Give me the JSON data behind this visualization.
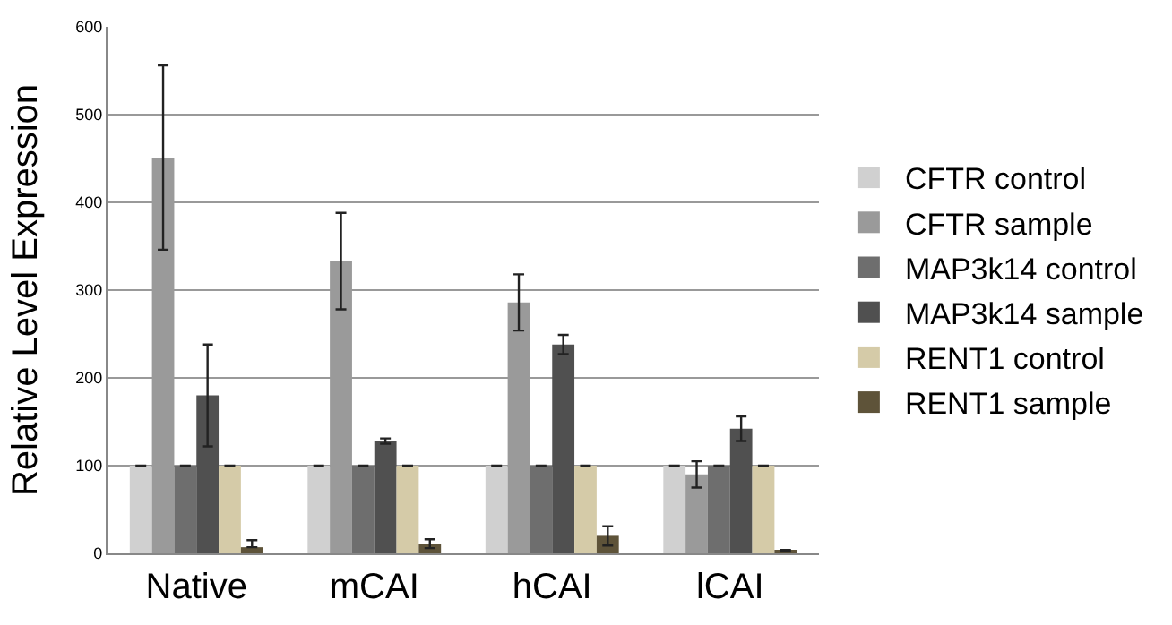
{
  "chart_data": {
    "type": "bar",
    "ylabel": "Relative Level Expression",
    "categories": [
      "Native",
      "mCAI",
      "hCAI",
      "lCAI"
    ],
    "series": [
      {
        "name": "CFTR control",
        "color": "#d0d0d0",
        "values": [
          100,
          100,
          100,
          100
        ],
        "errors": [
          0,
          0,
          0,
          0
        ]
      },
      {
        "name": "CFTR sample",
        "color": "#9a9a9a",
        "values": [
          451,
          333,
          286,
          90
        ],
        "errors": [
          105,
          55,
          32,
          15
        ]
      },
      {
        "name": "MAP3k14 control",
        "color": "#6e6e6e",
        "values": [
          100,
          100,
          100,
          100
        ],
        "errors": [
          0,
          0,
          0,
          0
        ]
      },
      {
        "name": "MAP3k14 sample",
        "color": "#505050",
        "values": [
          180,
          128,
          238,
          142
        ],
        "errors": [
          58,
          3,
          11,
          14
        ]
      },
      {
        "name": "RENT1 control",
        "color": "#d5cba8",
        "values": [
          100,
          100,
          100,
          100
        ],
        "errors": [
          0,
          0,
          0,
          0
        ]
      },
      {
        "name": "RENT1 sample",
        "color": "#5e5339",
        "values": [
          7,
          11,
          20,
          3
        ],
        "errors": [
          [
            7,
            15
          ],
          5,
          11,
          1
        ]
      }
    ],
    "ylim": [
      0,
      600
    ],
    "yticks": [
      0,
      100,
      200,
      300,
      400,
      500,
      600
    ],
    "grid": "y",
    "legend": "right"
  }
}
